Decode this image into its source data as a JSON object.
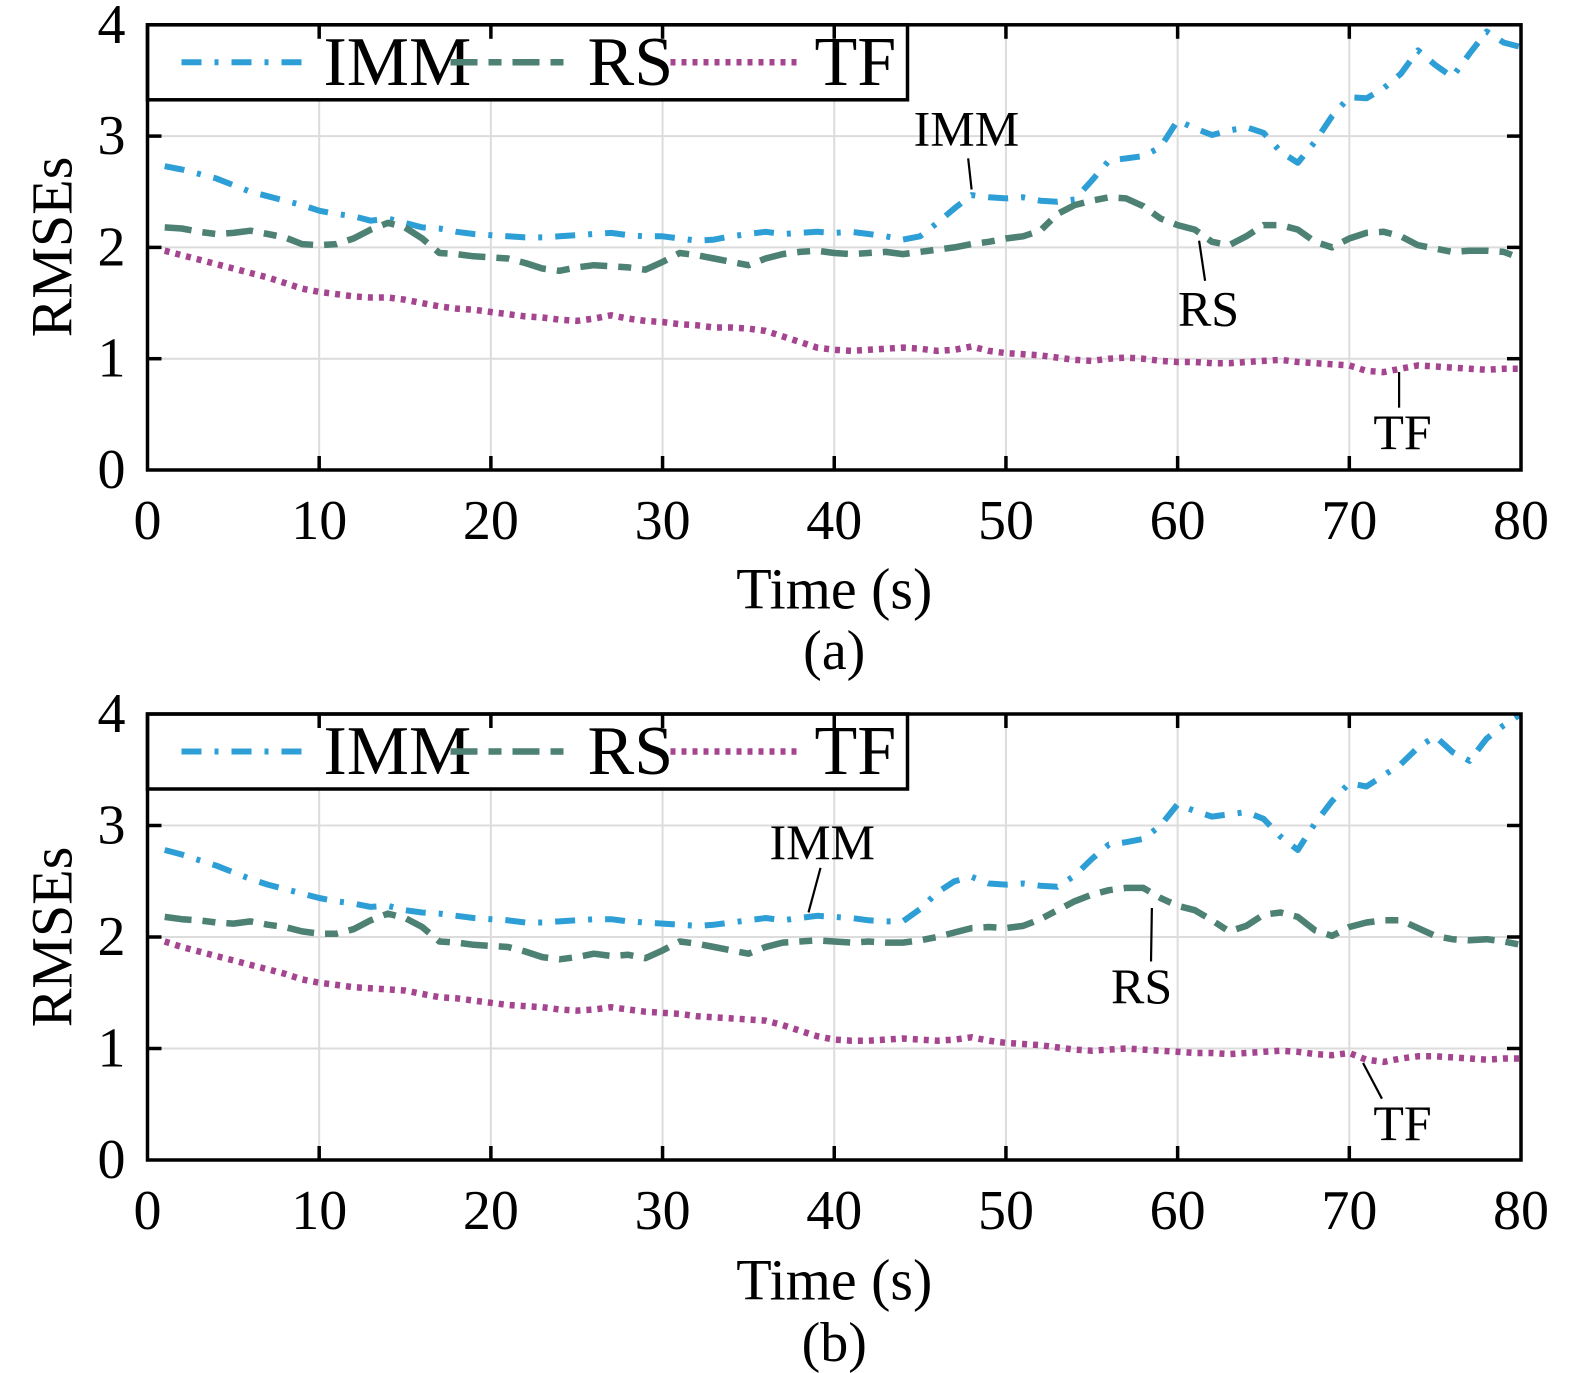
{
  "figure": {
    "background": "#ffffff",
    "axis_color": "#000000",
    "grid_color": "#dcdcdc",
    "text_color": "#000000"
  },
  "chart_data": [
    {
      "id": "a",
      "type": "line",
      "panel_label": "(a)",
      "xlabel": "Time (s)",
      "ylabel": "RMSEs",
      "xlim": [
        0,
        80
      ],
      "ylim": [
        0,
        4
      ],
      "xticks": [
        0,
        10,
        20,
        30,
        40,
        50,
        60,
        70,
        80
      ],
      "yticks": [
        0,
        1,
        2,
        3,
        4
      ],
      "grid": true,
      "legend_position": "top-left",
      "x": [
        1,
        2,
        3,
        4,
        5,
        6,
        7,
        8,
        9,
        10,
        11,
        12,
        13,
        14,
        15,
        16,
        17,
        18,
        19,
        20,
        21,
        22,
        23,
        24,
        25,
        26,
        27,
        28,
        29,
        30,
        31,
        32,
        33,
        34,
        35,
        36,
        37,
        38,
        39,
        40,
        41,
        42,
        43,
        44,
        45,
        46,
        47,
        48,
        49,
        50,
        51,
        52,
        53,
        54,
        55,
        56,
        57,
        58,
        59,
        60,
        61,
        62,
        63,
        64,
        65,
        66,
        67,
        68,
        69,
        70,
        71,
        72,
        73,
        74,
        75,
        76,
        77,
        78,
        79,
        80
      ],
      "series": [
        {
          "name": "IMM",
          "color": "#2d9fd6",
          "linestyle": "dashdot",
          "values": [
            2.73,
            2.7,
            2.66,
            2.62,
            2.56,
            2.5,
            2.46,
            2.42,
            2.38,
            2.33,
            2.3,
            2.28,
            2.24,
            2.26,
            2.22,
            2.18,
            2.17,
            2.14,
            2.12,
            2.11,
            2.1,
            2.09,
            2.09,
            2.1,
            2.11,
            2.12,
            2.13,
            2.11,
            2.1,
            2.1,
            2.08,
            2.06,
            2.07,
            2.1,
            2.12,
            2.14,
            2.12,
            2.13,
            2.14,
            2.13,
            2.14,
            2.12,
            2.1,
            2.07,
            2.1,
            2.22,
            2.35,
            2.47,
            2.45,
            2.44,
            2.45,
            2.42,
            2.41,
            2.43,
            2.6,
            2.78,
            2.8,
            2.82,
            2.9,
            3.14,
            3.07,
            3.01,
            3.05,
            3.08,
            3.03,
            2.86,
            2.76,
            2.95,
            3.18,
            3.35,
            3.34,
            3.43,
            3.56,
            3.77,
            3.64,
            3.53,
            3.74,
            3.94,
            3.84,
            3.8
          ]
        },
        {
          "name": "RS",
          "color": "#4d8173",
          "linestyle": "dashed",
          "values": [
            2.18,
            2.17,
            2.14,
            2.12,
            2.13,
            2.15,
            2.12,
            2.09,
            2.03,
            2.02,
            2.03,
            2.08,
            2.16,
            2.22,
            2.18,
            2.08,
            1.95,
            1.94,
            1.92,
            1.91,
            1.9,
            1.86,
            1.81,
            1.79,
            1.82,
            1.84,
            1.83,
            1.82,
            1.8,
            1.87,
            1.95,
            1.93,
            1.9,
            1.87,
            1.84,
            1.9,
            1.94,
            1.96,
            1.97,
            1.95,
            1.94,
            1.95,
            1.96,
            1.94,
            1.96,
            1.98,
            2.0,
            2.03,
            2.05,
            2.08,
            2.1,
            2.15,
            2.3,
            2.38,
            2.42,
            2.45,
            2.44,
            2.37,
            2.26,
            2.2,
            2.16,
            2.05,
            2.02,
            2.1,
            2.2,
            2.2,
            2.16,
            2.05,
            2.0,
            2.08,
            2.13,
            2.14,
            2.1,
            2.02,
            1.99,
            1.96,
            1.97,
            1.97,
            1.96,
            1.9
          ]
        },
        {
          "name": "TF",
          "color": "#a6458f",
          "linestyle": "dotted",
          "values": [
            1.97,
            1.93,
            1.89,
            1.85,
            1.81,
            1.77,
            1.73,
            1.68,
            1.63,
            1.6,
            1.58,
            1.56,
            1.55,
            1.55,
            1.53,
            1.5,
            1.47,
            1.45,
            1.44,
            1.42,
            1.4,
            1.38,
            1.37,
            1.35,
            1.34,
            1.36,
            1.39,
            1.36,
            1.34,
            1.33,
            1.31,
            1.3,
            1.28,
            1.28,
            1.27,
            1.25,
            1.2,
            1.15,
            1.1,
            1.08,
            1.07,
            1.08,
            1.09,
            1.1,
            1.09,
            1.07,
            1.08,
            1.11,
            1.07,
            1.05,
            1.04,
            1.03,
            1.01,
            0.99,
            0.98,
            1.0,
            1.01,
            1.0,
            0.98,
            0.97,
            0.97,
            0.96,
            0.96,
            0.97,
            0.98,
            0.99,
            0.97,
            0.96,
            0.95,
            0.94,
            0.89,
            0.88,
            0.91,
            0.94,
            0.93,
            0.92,
            0.91,
            0.9,
            0.91,
            0.91
          ]
        }
      ],
      "annotations": [
        {
          "text": "IMM",
          "label_x": 47.7,
          "label_y": 3.07,
          "line": [
            47.8,
            2.8,
            48.0,
            2.52
          ]
        },
        {
          "text": "RS",
          "label_x": 61.8,
          "label_y": 1.45,
          "line": [
            61.6,
            1.7,
            61.25,
            2.06
          ]
        },
        {
          "text": "TF",
          "label_x": 73.1,
          "label_y": 0.34,
          "line": [
            72.9,
            0.56,
            72.9,
            0.88
          ]
        }
      ]
    },
    {
      "id": "b",
      "type": "line",
      "panel_label": "(b)",
      "xlabel": "Time (s)",
      "ylabel": "RMSEs",
      "xlim": [
        0,
        80
      ],
      "ylim": [
        0,
        4
      ],
      "xticks": [
        0,
        10,
        20,
        30,
        40,
        50,
        60,
        70,
        80
      ],
      "yticks": [
        0,
        1,
        2,
        3,
        4
      ],
      "grid": true,
      "legend_position": "top-left",
      "x": [
        1,
        2,
        3,
        4,
        5,
        6,
        7,
        8,
        9,
        10,
        11,
        12,
        13,
        14,
        15,
        16,
        17,
        18,
        19,
        20,
        21,
        22,
        23,
        24,
        25,
        26,
        27,
        28,
        29,
        30,
        31,
        32,
        33,
        34,
        35,
        36,
        37,
        38,
        39,
        40,
        41,
        42,
        43,
        44,
        45,
        46,
        47,
        48,
        49,
        50,
        51,
        52,
        53,
        54,
        55,
        56,
        57,
        58,
        59,
        60,
        61,
        62,
        63,
        64,
        65,
        66,
        67,
        68,
        69,
        70,
        71,
        72,
        73,
        74,
        75,
        76,
        77,
        78,
        79,
        80
      ],
      "series": [
        {
          "name": "IMM",
          "color": "#2d9fd6",
          "linestyle": "dashdot",
          "values": [
            2.78,
            2.74,
            2.69,
            2.64,
            2.58,
            2.52,
            2.47,
            2.43,
            2.39,
            2.35,
            2.32,
            2.3,
            2.27,
            2.28,
            2.24,
            2.22,
            2.21,
            2.19,
            2.17,
            2.16,
            2.15,
            2.13,
            2.13,
            2.14,
            2.15,
            2.16,
            2.16,
            2.14,
            2.13,
            2.12,
            2.11,
            2.1,
            2.11,
            2.13,
            2.15,
            2.17,
            2.15,
            2.17,
            2.19,
            2.18,
            2.17,
            2.15,
            2.14,
            2.14,
            2.25,
            2.4,
            2.5,
            2.54,
            2.48,
            2.47,
            2.48,
            2.46,
            2.45,
            2.55,
            2.7,
            2.83,
            2.85,
            2.88,
            3.0,
            3.19,
            3.13,
            3.08,
            3.1,
            3.12,
            3.06,
            2.9,
            2.78,
            3.02,
            3.22,
            3.38,
            3.35,
            3.45,
            3.55,
            3.7,
            3.8,
            3.66,
            3.58,
            3.78,
            3.9,
            4.0
          ]
        },
        {
          "name": "RS",
          "color": "#4d8173",
          "linestyle": "dashed",
          "values": [
            2.18,
            2.16,
            2.15,
            2.13,
            2.12,
            2.14,
            2.11,
            2.09,
            2.05,
            2.03,
            2.03,
            2.07,
            2.15,
            2.21,
            2.17,
            2.09,
            1.96,
            1.95,
            1.93,
            1.92,
            1.91,
            1.87,
            1.82,
            1.8,
            1.82,
            1.85,
            1.83,
            1.84,
            1.81,
            1.88,
            1.96,
            1.94,
            1.91,
            1.88,
            1.85,
            1.91,
            1.95,
            1.96,
            1.97,
            1.96,
            1.95,
            1.96,
            1.95,
            1.95,
            1.97,
            2.0,
            2.04,
            2.08,
            2.09,
            2.08,
            2.1,
            2.16,
            2.24,
            2.32,
            2.38,
            2.42,
            2.44,
            2.44,
            2.35,
            2.28,
            2.24,
            2.15,
            2.05,
            2.1,
            2.2,
            2.22,
            2.18,
            2.06,
            2.01,
            2.09,
            2.13,
            2.15,
            2.15,
            2.08,
            2.01,
            1.98,
            1.97,
            1.98,
            1.96,
            1.93
          ]
        },
        {
          "name": "TF",
          "color": "#a6458f",
          "linestyle": "dotted",
          "values": [
            1.96,
            1.91,
            1.87,
            1.83,
            1.79,
            1.75,
            1.71,
            1.67,
            1.62,
            1.59,
            1.57,
            1.55,
            1.54,
            1.53,
            1.52,
            1.49,
            1.46,
            1.45,
            1.43,
            1.41,
            1.39,
            1.38,
            1.37,
            1.35,
            1.34,
            1.35,
            1.37,
            1.35,
            1.33,
            1.32,
            1.31,
            1.29,
            1.28,
            1.27,
            1.26,
            1.25,
            1.21,
            1.16,
            1.11,
            1.08,
            1.07,
            1.07,
            1.08,
            1.09,
            1.08,
            1.07,
            1.08,
            1.1,
            1.07,
            1.05,
            1.04,
            1.03,
            1.01,
            0.99,
            0.98,
            0.99,
            1.0,
            0.99,
            0.98,
            0.97,
            0.96,
            0.96,
            0.95,
            0.96,
            0.97,
            0.98,
            0.97,
            0.95,
            0.94,
            0.96,
            0.9,
            0.88,
            0.91,
            0.93,
            0.93,
            0.92,
            0.91,
            0.9,
            0.91,
            0.91
          ]
        }
      ],
      "annotations": [
        {
          "text": "IMM",
          "label_x": 39.3,
          "label_y": 2.85,
          "line": [
            39.2,
            2.62,
            38.5,
            2.22
          ]
        },
        {
          "text": "RS",
          "label_x": 57.9,
          "label_y": 1.56,
          "line": [
            58.45,
            1.78,
            58.5,
            2.26
          ]
        },
        {
          "text": "TF",
          "label_x": 73.1,
          "label_y": 0.33,
          "line": [
            71.9,
            0.55,
            70.8,
            0.87
          ]
        }
      ]
    }
  ]
}
